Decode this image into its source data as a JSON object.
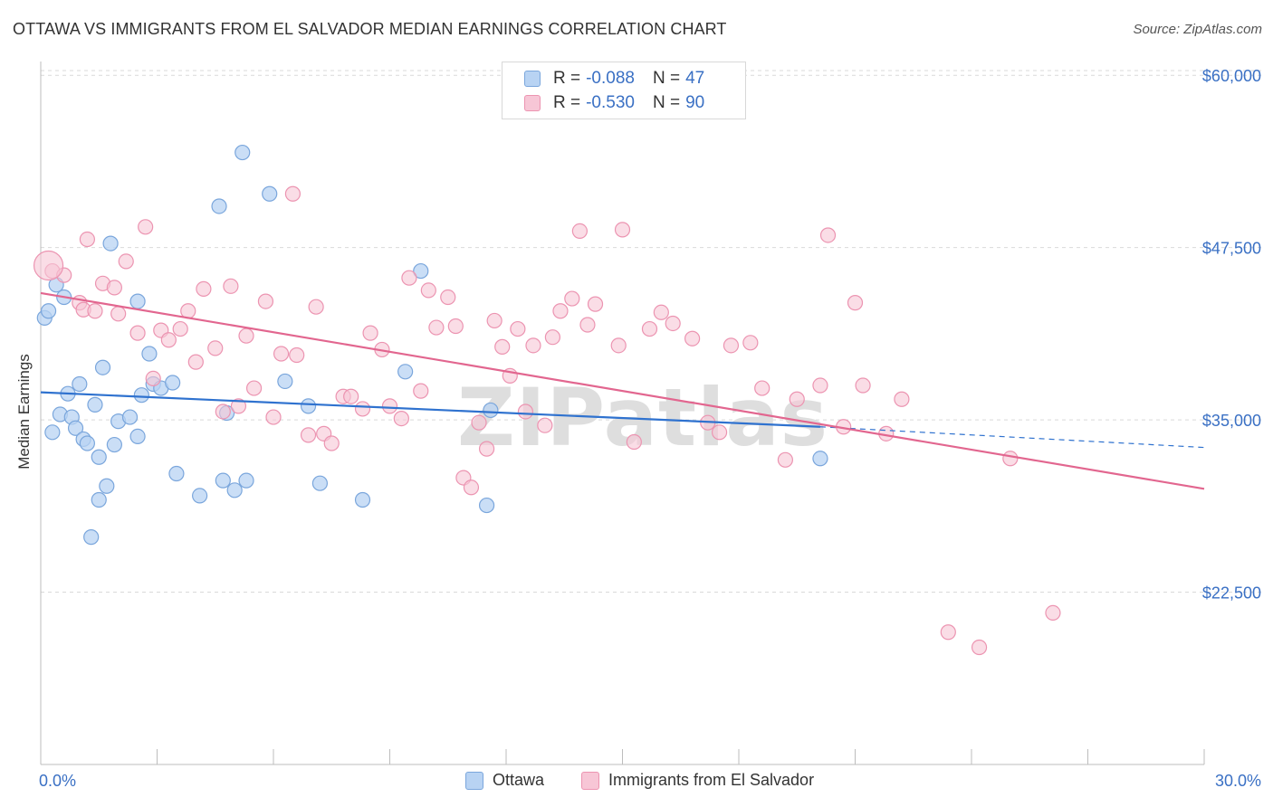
{
  "title": "OTTAWA VS IMMIGRANTS FROM EL SALVADOR MEDIAN EARNINGS CORRELATION CHART",
  "source": "Source: ZipAtlas.com",
  "watermark": "ZIPatlas",
  "legend": {
    "r_label": "R =",
    "n_label": "N =",
    "rows": [
      {
        "r": "-0.088",
        "n": "47"
      },
      {
        "r": "-0.530",
        "n": "90"
      }
    ]
  },
  "bottom_legend": [
    "Ottawa",
    "Immigrants from El Salvador"
  ],
  "colors": {
    "ottawa_fill": "#b8d3f3",
    "ottawa_stroke": "#7aa6dc",
    "ottawa_line": "#2f72cf",
    "salvador_fill": "#f7c6d6",
    "salvador_stroke": "#ec94b1",
    "salvador_line": "#e2668f",
    "tick_text": "#3a70c4",
    "grid": "#d9d9d9"
  },
  "chart_data": {
    "type": "scatter",
    "title": "OTTAWA VS IMMIGRANTS FROM EL SALVADOR MEDIAN EARNINGS CORRELATION CHART",
    "xlabel": "",
    "ylabel": "Median Earnings",
    "xlim": [
      0,
      30
    ],
    "ylim": [
      10000,
      61000
    ],
    "x_tick_labels": [
      "0.0%",
      "30.0%"
    ],
    "y_ticks": [
      22500,
      35000,
      47500,
      60000
    ],
    "y_tick_labels": [
      "$22,500",
      "$35,000",
      "$47,500",
      "$60,000"
    ],
    "grid": "horizontal dashed",
    "legend_position": "top-center",
    "series": [
      {
        "name": "Ottawa",
        "r": -0.088,
        "n": 47,
        "trend": {
          "x0": 0,
          "y0": 37000,
          "x1": 20.1,
          "y1": 34500,
          "dashed_to_x": 30,
          "dashed_to_y": 33000
        },
        "points": [
          [
            0.1,
            42400
          ],
          [
            0.2,
            42900
          ],
          [
            0.3,
            34100
          ],
          [
            0.4,
            44800
          ],
          [
            0.5,
            35400
          ],
          [
            0.6,
            43900
          ],
          [
            0.7,
            36900
          ],
          [
            0.8,
            35200
          ],
          [
            0.9,
            34400
          ],
          [
            1.0,
            37600
          ],
          [
            1.1,
            33600
          ],
          [
            1.2,
            33300
          ],
          [
            1.3,
            26500
          ],
          [
            1.4,
            36100
          ],
          [
            1.5,
            32300
          ],
          [
            1.5,
            29200
          ],
          [
            1.6,
            38800
          ],
          [
            1.7,
            30200
          ],
          [
            1.8,
            47800
          ],
          [
            1.9,
            33200
          ],
          [
            2.0,
            34900
          ],
          [
            2.3,
            35200
          ],
          [
            2.5,
            33800
          ],
          [
            2.5,
            43600
          ],
          [
            2.6,
            36800
          ],
          [
            2.8,
            39800
          ],
          [
            2.9,
            37600
          ],
          [
            3.1,
            37300
          ],
          [
            3.4,
            37700
          ],
          [
            3.5,
            31100
          ],
          [
            4.1,
            29500
          ],
          [
            4.6,
            50500
          ],
          [
            4.7,
            30600
          ],
          [
            4.8,
            35500
          ],
          [
            5.0,
            29900
          ],
          [
            5.2,
            54400
          ],
          [
            5.3,
            30600
          ],
          [
            5.9,
            51400
          ],
          [
            6.3,
            37800
          ],
          [
            6.9,
            36000
          ],
          [
            7.2,
            30400
          ],
          [
            8.3,
            29200
          ],
          [
            9.4,
            38500
          ],
          [
            9.8,
            45800
          ],
          [
            11.5,
            28800
          ],
          [
            11.6,
            35700
          ],
          [
            20.1,
            32200
          ]
        ]
      },
      {
        "name": "Immigrants from El Salvador",
        "r": -0.53,
        "n": 90,
        "trend": {
          "x0": 0,
          "y0": 44200,
          "x1": 30,
          "y1": 30000
        },
        "points": [
          [
            0.3,
            45800
          ],
          [
            0.6,
            45500
          ],
          [
            1.0,
            43500
          ],
          [
            1.1,
            43000
          ],
          [
            1.2,
            48100
          ],
          [
            1.4,
            42900
          ],
          [
            1.6,
            44900
          ],
          [
            1.9,
            44600
          ],
          [
            2.0,
            42700
          ],
          [
            2.2,
            46500
          ],
          [
            2.5,
            41300
          ],
          [
            2.7,
            49000
          ],
          [
            2.9,
            38000
          ],
          [
            3.1,
            41500
          ],
          [
            3.3,
            40800
          ],
          [
            3.6,
            41600
          ],
          [
            3.8,
            42900
          ],
          [
            4.0,
            39200
          ],
          [
            4.2,
            44500
          ],
          [
            4.5,
            40200
          ],
          [
            4.7,
            35600
          ],
          [
            4.9,
            44700
          ],
          [
            5.1,
            36000
          ],
          [
            5.3,
            41100
          ],
          [
            5.5,
            37300
          ],
          [
            5.8,
            43600
          ],
          [
            6.0,
            35200
          ],
          [
            6.2,
            39800
          ],
          [
            6.5,
            51400
          ],
          [
            6.6,
            39700
          ],
          [
            6.9,
            33900
          ],
          [
            7.1,
            43200
          ],
          [
            7.3,
            34000
          ],
          [
            7.5,
            33300
          ],
          [
            7.8,
            36700
          ],
          [
            8.0,
            36700
          ],
          [
            8.3,
            35800
          ],
          [
            8.5,
            41300
          ],
          [
            8.8,
            40100
          ],
          [
            9.0,
            36000
          ],
          [
            9.3,
            35100
          ],
          [
            9.5,
            45300
          ],
          [
            9.8,
            37100
          ],
          [
            10.0,
            44400
          ],
          [
            10.2,
            41700
          ],
          [
            10.5,
            43900
          ],
          [
            10.7,
            41800
          ],
          [
            10.9,
            30800
          ],
          [
            11.1,
            30100
          ],
          [
            11.3,
            34800
          ],
          [
            11.5,
            32900
          ],
          [
            11.7,
            42200
          ],
          [
            11.9,
            40300
          ],
          [
            12.1,
            38200
          ],
          [
            12.3,
            41600
          ],
          [
            12.5,
            35600
          ],
          [
            12.7,
            40400
          ],
          [
            13.0,
            34600
          ],
          [
            13.2,
            41000
          ],
          [
            13.4,
            42900
          ],
          [
            13.7,
            43800
          ],
          [
            13.9,
            48700
          ],
          [
            14.1,
            41900
          ],
          [
            14.3,
            43400
          ],
          [
            14.9,
            40400
          ],
          [
            15.3,
            33400
          ],
          [
            15.7,
            41600
          ],
          [
            16.0,
            42800
          ],
          [
            16.3,
            42000
          ],
          [
            16.8,
            40900
          ],
          [
            17.2,
            34800
          ],
          [
            17.5,
            34100
          ],
          [
            17.8,
            40400
          ],
          [
            18.3,
            40600
          ],
          [
            18.6,
            37300
          ],
          [
            19.2,
            32100
          ],
          [
            19.5,
            36500
          ],
          [
            20.1,
            37500
          ],
          [
            20.3,
            48400
          ],
          [
            20.7,
            34500
          ],
          [
            21.0,
            43500
          ],
          [
            21.2,
            37500
          ],
          [
            21.8,
            34000
          ],
          [
            22.2,
            36500
          ],
          [
            23.4,
            19600
          ],
          [
            24.2,
            18500
          ],
          [
            25.0,
            32200
          ],
          [
            26.1,
            21000
          ],
          [
            0.2,
            46200
          ],
          [
            15.0,
            48800
          ]
        ]
      }
    ]
  }
}
